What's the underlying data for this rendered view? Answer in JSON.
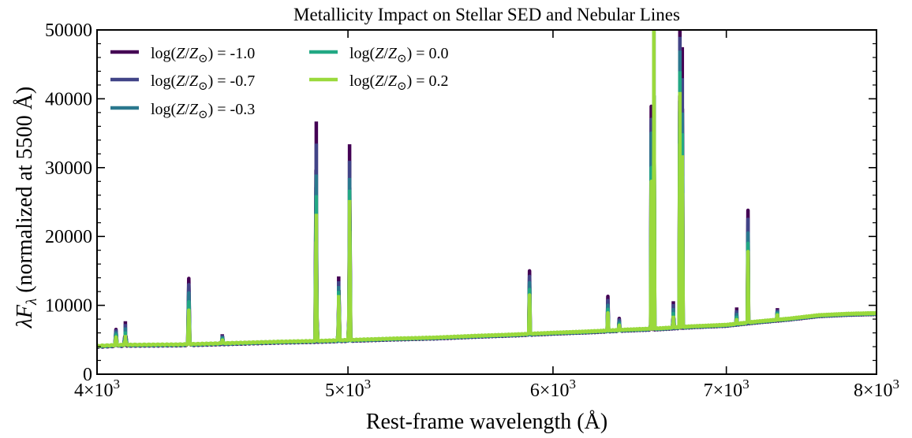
{
  "chart_data": {
    "type": "line",
    "title": "Metallicity Impact on Stellar SED and Nebular Lines",
    "xlabel": "Rest-frame wavelength (Å)",
    "ylabel": "λF_λ (normalized at 5500 Å)",
    "xscale": "log",
    "xlim": [
      4000,
      8000
    ],
    "ylim": [
      0,
      50000
    ],
    "x_ticks": [
      4000,
      5000,
      6000,
      7000,
      8000
    ],
    "x_tick_labels": [
      {
        "base": "4×10",
        "exp": "3"
      },
      {
        "base": "5×10",
        "exp": "3"
      },
      {
        "base": "6×10",
        "exp": "3"
      },
      {
        "base": "7×10",
        "exp": "3"
      },
      {
        "base": "8×10",
        "exp": "3"
      }
    ],
    "y_ticks": [
      0,
      10000,
      20000,
      30000,
      40000,
      50000
    ],
    "y_tick_labels": [
      "0",
      "10000",
      "20000",
      "30000",
      "40000",
      "50000"
    ],
    "grid": false,
    "legend_position": "top-left",
    "legend_columns": 2,
    "continuum": [
      [
        4000,
        4050
      ],
      [
        4100,
        4200
      ],
      [
        4300,
        4250
      ],
      [
        4500,
        4450
      ],
      [
        4700,
        4650
      ],
      [
        4850,
        4750
      ],
      [
        5000,
        4900
      ],
      [
        5200,
        5100
      ],
      [
        5400,
        5250
      ],
      [
        5600,
        5500
      ],
      [
        5800,
        5700
      ],
      [
        6000,
        5950
      ],
      [
        6200,
        6150
      ],
      [
        6400,
        6400
      ],
      [
        6600,
        6600
      ],
      [
        6800,
        6900
      ],
      [
        7000,
        7100
      ],
      [
        7200,
        7600
      ],
      [
        7400,
        8000
      ],
      [
        7600,
        8500
      ],
      [
        7800,
        8700
      ],
      [
        8000,
        8800
      ]
    ],
    "emission_lines": [
      {
        "wavelength": 4068,
        "peaks": [
          6500,
          6300,
          6000,
          5700,
          5400
        ]
      },
      {
        "wavelength": 4102,
        "peaks": [
          7700,
          7300,
          6800,
          6200,
          5700
        ]
      },
      {
        "wavelength": 4340,
        "peaks": [
          13900,
          13000,
          11800,
          10500,
          9300
        ]
      },
      {
        "wavelength": 4471,
        "peaks": [
          5800,
          5700,
          5500,
          5300,
          5100
        ]
      },
      {
        "wavelength": 4861,
        "peaks": [
          36700,
          33500,
          29000,
          26000,
          23300
        ]
      },
      {
        "wavelength": 4959,
        "peaks": [
          14200,
          13500,
          12800,
          12100,
          11500
        ]
      },
      {
        "wavelength": 5007,
        "peaks": [
          33400,
          31000,
          28500,
          26800,
          25300
        ]
      },
      {
        "wavelength": 5876,
        "peaks": [
          15000,
          14200,
          13300,
          12300,
          11500
        ]
      },
      {
        "wavelength": 6300,
        "peaks": [
          11300,
          10700,
          10000,
          9400,
          8900
        ]
      },
      {
        "wavelength": 6364,
        "peaks": [
          8100,
          7900,
          7600,
          7300,
          7100
        ]
      },
      {
        "wavelength": 6548,
        "peaks": [
          38900,
          37000,
          35000,
          30000,
          28000
        ]
      },
      {
        "wavelength": 6563,
        "peaks": [
          50000,
          50000,
          50000,
          50000,
          50000
        ]
      },
      {
        "wavelength": 6678,
        "peaks": [
          10600,
          10200,
          9600,
          9000,
          8500
        ]
      },
      {
        "wavelength": 6717,
        "peaks": [
          50000,
          49000,
          47000,
          44000,
          41000
        ]
      },
      {
        "wavelength": 6731,
        "peaks": [
          47500,
          43000,
          38000,
          35000,
          31800
        ]
      },
      {
        "wavelength": 7065,
        "peaks": [
          9700,
          9300,
          8900,
          8500,
          8100
        ]
      },
      {
        "wavelength": 7136,
        "peaks": [
          23800,
          22500,
          20500,
          19000,
          17800
        ]
      },
      {
        "wavelength": 7325,
        "peaks": [
          9600,
          9400,
          9200,
          9000,
          8800
        ]
      }
    ],
    "series": [
      {
        "name": "log(Z/Z☉) = -1.0",
        "label_value": "-1.0",
        "color": "#440154"
      },
      {
        "name": "log(Z/Z☉) = -0.7",
        "label_value": "-0.7",
        "color": "#414487"
      },
      {
        "name": "log(Z/Z☉) = -0.3",
        "label_value": "-0.3",
        "color": "#2a788e"
      },
      {
        "name": "log(Z/Z☉) = 0.0",
        "label_value": "0.0",
        "color": "#22a884"
      },
      {
        "name": "log(Z/Z☉) = 0.2",
        "label_value": "0.2",
        "color": "#9ad93c"
      }
    ]
  }
}
